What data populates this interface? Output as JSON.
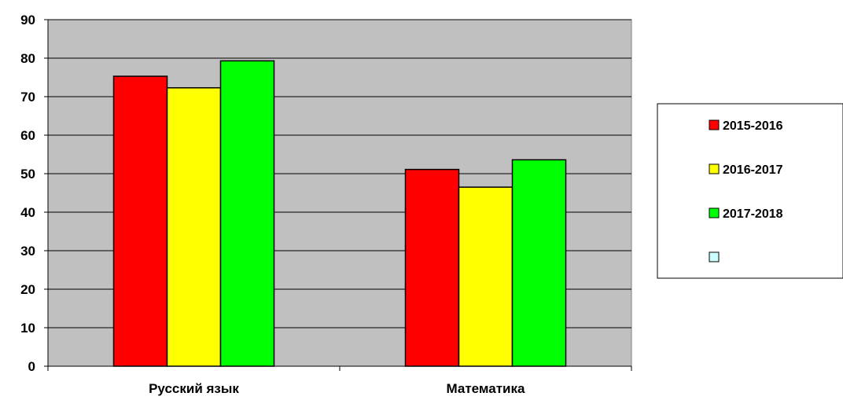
{
  "chart_data": {
    "type": "bar",
    "categories": [
      "Русский язык",
      "Математика"
    ],
    "series": [
      {
        "name": "2015-2016",
        "color": "#ff0000",
        "values": [
          75.3,
          51.1
        ]
      },
      {
        "name": "2016-2017",
        "color": "#ffff00",
        "values": [
          72.3,
          46.5
        ]
      },
      {
        "name": "2017-2018",
        "color": "#00ff00",
        "values": [
          79.3,
          53.6
        ]
      },
      {
        "name": "",
        "color": "#ccffff",
        "values": [
          null,
          null
        ]
      }
    ],
    "title": "",
    "xlabel": "",
    "ylabel": "",
    "ylim": [
      0,
      90
    ],
    "ytick_step": 10,
    "grid": true,
    "plot_background": "#c0c0c0",
    "legend": "right"
  }
}
